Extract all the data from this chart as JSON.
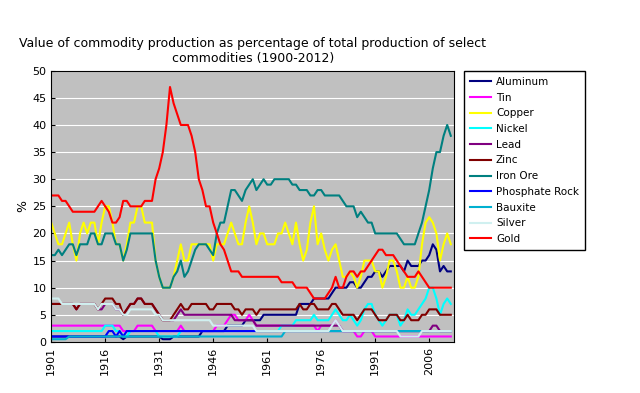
{
  "title": "Value of commodity production as percentage of total production of select\ncommodities (1900-2012)",
  "ylabel": "%",
  "xlim": [
    1901,
    2013
  ],
  "ylim": [
    0,
    50
  ],
  "yticks": [
    0,
    5,
    10,
    15,
    20,
    25,
    30,
    35,
    40,
    45,
    50
  ],
  "xtick_years": [
    1901,
    1916,
    1931,
    1946,
    1961,
    1976,
    1991,
    2006
  ],
  "background_color": "#c0c0c0",
  "fig_background": "#ffffff",
  "commodity_styles": {
    "Aluminum": {
      "color": "#000080",
      "lw": 1.5,
      "ls": "-"
    },
    "Tin": {
      "color": "#FF00FF",
      "lw": 1.5,
      "ls": "-"
    },
    "Copper": {
      "color": "#FFFF00",
      "lw": 1.5,
      "ls": "-"
    },
    "Nickel": {
      "color": "#00FFFF",
      "lw": 1.5,
      "ls": "-"
    },
    "Lead": {
      "color": "#800080",
      "lw": 1.5,
      "ls": "-"
    },
    "Zinc": {
      "color": "#800000",
      "lw": 1.5,
      "ls": "-"
    },
    "Iron Ore": {
      "color": "#008080",
      "lw": 1.5,
      "ls": "-"
    },
    "Phosphate Rock": {
      "color": "#0000FF",
      "lw": 1.5,
      "ls": "-"
    },
    "Bauxite": {
      "color": "#00B0D0",
      "lw": 1.5,
      "ls": "-"
    },
    "Silver": {
      "color": "#D0F0F0",
      "lw": 1.5,
      "ls": "-"
    },
    "Gold": {
      "color": "#FF0000",
      "lw": 1.5,
      "ls": "-"
    }
  },
  "legend_order": [
    "Aluminum",
    "Tin",
    "Copper",
    "Nickel",
    "Lead",
    "Zinc",
    "Iron Ore",
    "Phosphate Rock",
    "Bauxite",
    "Silver",
    "Gold"
  ],
  "data": {
    "Aluminum": [
      1,
      1,
      1,
      1,
      1,
      1,
      1,
      1,
      1,
      1,
      1,
      1,
      1,
      1,
      1,
      1,
      1,
      1,
      1,
      1,
      0.5,
      1,
      1,
      1,
      1,
      1,
      1,
      1,
      1,
      1,
      1,
      0.5,
      0.5,
      0.5,
      1,
      1,
      1,
      1,
      1,
      1,
      1,
      1,
      2,
      2,
      2,
      2,
      2,
      2,
      2,
      3,
      3,
      3,
      3,
      3,
      4,
      4,
      4,
      4,
      4,
      5,
      5,
      5,
      5,
      5,
      5,
      5,
      5,
      5,
      5,
      7,
      7,
      7,
      7,
      8,
      8,
      8,
      8,
      8,
      9,
      10,
      10,
      10,
      10,
      11,
      11,
      10,
      10,
      11,
      12,
      12,
      13,
      13,
      12,
      13,
      14,
      14,
      14,
      14,
      13,
      15,
      14,
      14,
      14,
      15,
      15,
      16,
      18,
      17,
      13,
      14,
      13,
      13
    ],
    "Tin": [
      3,
      3,
      3,
      3,
      3,
      3,
      3,
      3,
      3,
      3,
      3,
      3,
      3,
      3,
      3,
      3,
      3,
      3,
      3,
      3,
      2,
      2,
      2,
      2,
      3,
      3,
      3,
      3,
      3,
      2,
      2,
      2,
      2,
      2,
      2,
      2,
      3,
      2,
      2,
      2,
      2,
      2,
      2,
      2,
      2,
      2,
      3,
      3,
      3,
      4,
      5,
      5,
      4,
      4,
      4,
      5,
      4,
      3,
      3,
      3,
      3,
      3,
      3,
      3,
      3,
      3,
      3,
      3,
      3,
      3,
      3,
      3,
      3,
      3,
      2,
      3,
      3,
      3,
      3,
      4,
      3,
      2,
      2,
      2,
      2,
      1,
      1,
      2,
      2,
      2,
      1,
      1,
      1,
      1,
      1,
      1,
      1,
      1,
      1,
      1,
      1,
      1,
      1,
      1,
      1,
      1,
      1,
      1,
      1,
      1,
      1,
      1
    ],
    "Copper": [
      22,
      20,
      18,
      18,
      20,
      22,
      18,
      15,
      20,
      22,
      20,
      22,
      22,
      18,
      22,
      25,
      25,
      22,
      18,
      18,
      15,
      18,
      22,
      22,
      25,
      25,
      22,
      22,
      22,
      15,
      12,
      10,
      10,
      10,
      12,
      15,
      18,
      15,
      15,
      18,
      18,
      18,
      18,
      18,
      18,
      15,
      18,
      18,
      18,
      20,
      22,
      20,
      18,
      18,
      22,
      25,
      22,
      18,
      20,
      20,
      18,
      18,
      18,
      20,
      20,
      22,
      20,
      18,
      22,
      18,
      15,
      17,
      22,
      25,
      18,
      20,
      17,
      15,
      17,
      18,
      15,
      12,
      12,
      13,
      12,
      10,
      12,
      15,
      15,
      15,
      13,
      13,
      10,
      12,
      15,
      15,
      13,
      10,
      10,
      12,
      10,
      10,
      12,
      18,
      22,
      23,
      22,
      20,
      15,
      18,
      20,
      18
    ],
    "Nickel": [
      2,
      2,
      2,
      2,
      2,
      2,
      2,
      2,
      2,
      2,
      2,
      2,
      2,
      2,
      2,
      3,
      3,
      3,
      2,
      2,
      1,
      1,
      2,
      2,
      2,
      2,
      2,
      2,
      2,
      2,
      1,
      1,
      1,
      1,
      1,
      1,
      2,
      2,
      2,
      2,
      2,
      2,
      2,
      2,
      2,
      2,
      2,
      2,
      2,
      2,
      2,
      2,
      2,
      2,
      2,
      2,
      2,
      2,
      2,
      2,
      2,
      2,
      2,
      2,
      3,
      3,
      3,
      3,
      4,
      4,
      4,
      4,
      4,
      5,
      4,
      4,
      4,
      4,
      5,
      6,
      5,
      4,
      4,
      5,
      4,
      3,
      4,
      6,
      7,
      7,
      5,
      4,
      3,
      4,
      5,
      5,
      5,
      3,
      4,
      6,
      5,
      5,
      6,
      7,
      8,
      10,
      10,
      8,
      5,
      7,
      8,
      7
    ],
    "Lead": [
      7,
      7,
      7,
      7,
      7,
      7,
      7,
      6,
      7,
      7,
      7,
      7,
      7,
      6,
      6,
      7,
      7,
      7,
      6,
      6,
      5,
      6,
      7,
      7,
      8,
      8,
      7,
      7,
      7,
      6,
      5,
      4,
      4,
      4,
      4,
      5,
      6,
      5,
      5,
      5,
      5,
      5,
      5,
      5,
      5,
      5,
      5,
      5,
      5,
      5,
      5,
      4,
      4,
      4,
      4,
      4,
      4,
      3,
      3,
      3,
      3,
      3,
      3,
      3,
      3,
      3,
      3,
      3,
      3,
      3,
      3,
      3,
      3,
      3,
      3,
      3,
      3,
      3,
      3,
      3,
      3,
      2,
      2,
      2,
      2,
      2,
      2,
      2,
      2,
      2,
      2,
      2,
      2,
      2,
      2,
      2,
      2,
      2,
      2,
      2,
      2,
      2,
      2,
      2,
      2,
      2,
      3,
      3,
      2,
      2,
      2,
      2
    ],
    "Zinc": [
      7,
      7,
      7,
      7,
      7,
      7,
      7,
      6,
      7,
      7,
      7,
      7,
      7,
      6,
      7,
      8,
      8,
      8,
      7,
      7,
      5,
      6,
      7,
      7,
      8,
      8,
      7,
      7,
      7,
      6,
      5,
      4,
      4,
      4,
      5,
      6,
      7,
      6,
      6,
      7,
      7,
      7,
      7,
      7,
      6,
      6,
      7,
      7,
      7,
      7,
      7,
      6,
      6,
      5,
      6,
      6,
      6,
      5,
      6,
      6,
      6,
      6,
      6,
      6,
      6,
      6,
      6,
      6,
      6,
      7,
      6,
      6,
      7,
      7,
      6,
      6,
      6,
      6,
      7,
      7,
      6,
      5,
      5,
      5,
      5,
      4,
      5,
      6,
      6,
      6,
      5,
      4,
      4,
      4,
      5,
      5,
      5,
      4,
      4,
      5,
      4,
      4,
      4,
      5,
      5,
      6,
      6,
      6,
      5,
      5,
      5,
      5
    ],
    "Iron Ore": [
      16,
      16,
      17,
      16,
      17,
      18,
      18,
      16,
      18,
      18,
      18,
      20,
      20,
      18,
      18,
      20,
      20,
      20,
      18,
      18,
      15,
      17,
      20,
      20,
      20,
      20,
      20,
      20,
      20,
      15,
      12,
      10,
      10,
      10,
      12,
      13,
      15,
      12,
      13,
      15,
      17,
      18,
      18,
      18,
      17,
      16,
      20,
      22,
      22,
      25,
      28,
      28,
      27,
      26,
      28,
      29,
      30,
      28,
      29,
      30,
      29,
      29,
      30,
      30,
      30,
      30,
      30,
      29,
      29,
      28,
      28,
      28,
      27,
      27,
      28,
      28,
      27,
      27,
      27,
      27,
      27,
      26,
      25,
      25,
      25,
      23,
      24,
      23,
      22,
      22,
      20,
      20,
      20,
      20,
      20,
      20,
      20,
      19,
      18,
      18,
      18,
      18,
      20,
      22,
      25,
      28,
      32,
      35,
      35,
      38,
      40,
      38
    ],
    "Phosphate Rock": [
      1,
      1,
      1,
      1,
      1,
      1,
      1,
      1,
      1,
      1,
      1,
      1,
      1,
      1,
      1,
      1,
      2,
      2,
      1,
      2,
      1,
      2,
      2,
      2,
      2,
      2,
      2,
      2,
      2,
      2,
      2,
      2,
      2,
      2,
      2,
      2,
      2,
      2,
      2,
      2,
      2,
      2,
      2,
      2,
      2,
      2,
      2,
      2,
      2,
      2,
      2,
      2,
      2,
      2,
      2,
      2,
      2,
      2,
      2,
      2,
      2,
      2,
      2,
      2,
      2,
      2,
      2,
      2,
      2,
      2,
      2,
      2,
      2,
      2,
      2,
      2,
      2,
      2,
      2,
      2,
      2,
      2,
      2,
      2,
      2,
      2,
      2,
      2,
      2,
      2,
      2,
      2,
      2,
      2,
      2,
      2,
      2,
      2,
      2,
      2,
      2,
      2,
      2,
      2,
      2,
      2,
      2,
      2,
      2,
      2,
      2,
      2
    ],
    "Bauxite": [
      0.5,
      0.5,
      0.5,
      0.5,
      0.5,
      1,
      1,
      1,
      1,
      1,
      1,
      1,
      1,
      1,
      1,
      1,
      1,
      1,
      1,
      1,
      1,
      1,
      1,
      1,
      1,
      1,
      1,
      1,
      1,
      1,
      1,
      1,
      1,
      1,
      1,
      1,
      1,
      1,
      1,
      1,
      1,
      1,
      1,
      1,
      1,
      1,
      1,
      1,
      1,
      1,
      1,
      1,
      1,
      1,
      1,
      1,
      1,
      1,
      1,
      1,
      1,
      1,
      1,
      1,
      1,
      2,
      2,
      2,
      2,
      2,
      2,
      2,
      2,
      2,
      2,
      2,
      2,
      2,
      2,
      2,
      2,
      2,
      2,
      2,
      2,
      2,
      2,
      2,
      2,
      2,
      2,
      2,
      2,
      2,
      2,
      2,
      2,
      2,
      2,
      2,
      2,
      2,
      2,
      2,
      2,
      2,
      2,
      2,
      2,
      2,
      2,
      2
    ],
    "Silver": [
      8,
      8,
      8,
      7,
      7,
      7,
      7,
      7,
      7,
      7,
      7,
      7,
      7,
      6,
      7,
      7,
      7,
      7,
      6,
      6,
      5,
      5,
      6,
      6,
      6,
      6,
      6,
      6,
      6,
      5,
      5,
      4,
      4,
      4,
      4,
      4,
      4,
      4,
      4,
      4,
      4,
      4,
      4,
      4,
      4,
      3,
      3,
      3,
      3,
      3,
      3,
      3,
      3,
      3,
      3,
      3,
      3,
      2,
      2,
      2,
      2,
      2,
      2,
      2,
      2,
      2,
      2,
      2,
      2,
      2,
      2,
      2,
      2,
      2,
      2,
      2,
      2,
      2,
      3,
      4,
      3,
      2,
      2,
      2,
      2,
      2,
      2,
      2,
      2,
      2,
      2,
      2,
      2,
      2,
      2,
      2,
      2,
      1,
      1,
      1,
      1,
      1,
      1,
      2,
      2,
      2,
      2,
      2,
      2,
      2,
      2,
      2
    ],
    "Gold": [
      27,
      27,
      27,
      26,
      26,
      25,
      24,
      24,
      24,
      24,
      24,
      24,
      24,
      25,
      26,
      25,
      24,
      22,
      22,
      23,
      26,
      26,
      25,
      25,
      25,
      25,
      26,
      26,
      26,
      30,
      32,
      35,
      40,
      47,
      44,
      42,
      40,
      40,
      40,
      38,
      35,
      30,
      28,
      25,
      25,
      22,
      20,
      18,
      17,
      15,
      13,
      13,
      13,
      12,
      12,
      12,
      12,
      12,
      12,
      12,
      12,
      12,
      12,
      12,
      11,
      11,
      11,
      11,
      10,
      10,
      10,
      10,
      9,
      8,
      8,
      8,
      8,
      9,
      10,
      12,
      10,
      10,
      12,
      13,
      13,
      12,
      13,
      13,
      14,
      15,
      16,
      17,
      17,
      16,
      16,
      16,
      15,
      14,
      13,
      12,
      12,
      12,
      13,
      12,
      11,
      10,
      10,
      10,
      10,
      10,
      10,
      10
    ]
  }
}
